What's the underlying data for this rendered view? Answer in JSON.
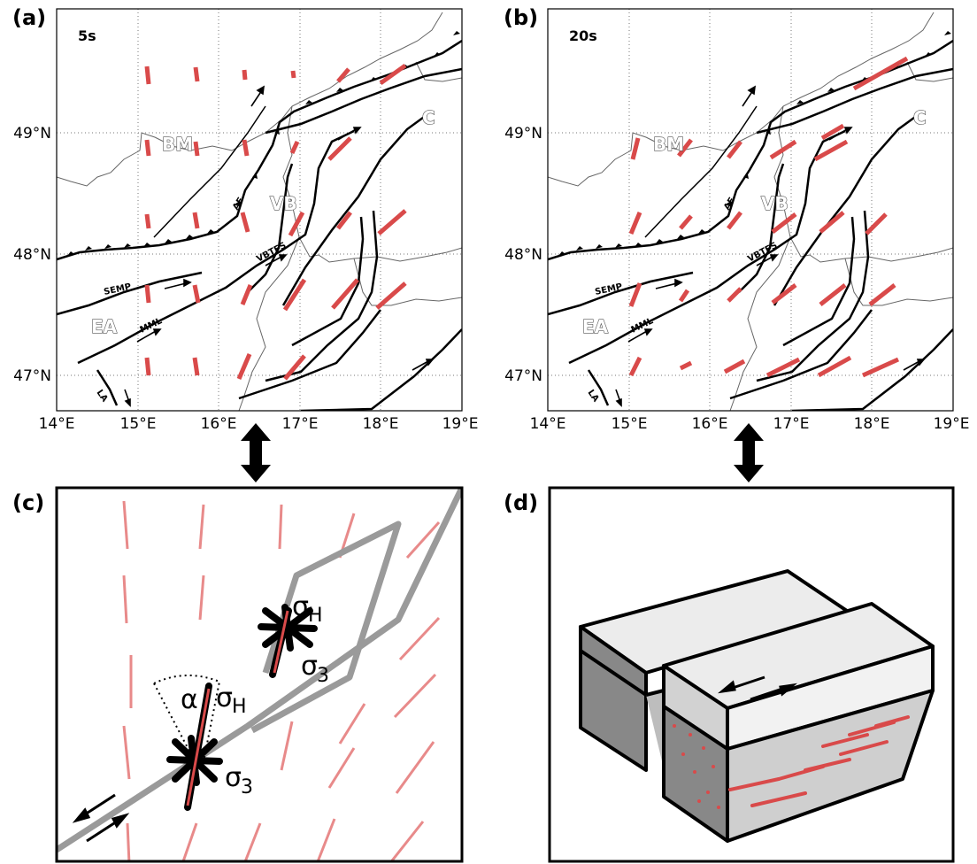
{
  "panels": {
    "a": {
      "label": "(a)",
      "period": "5s"
    },
    "b": {
      "label": "(b)",
      "period": "20s"
    },
    "c": {
      "label": "(c)"
    },
    "d": {
      "label": "(d)"
    }
  },
  "axes": {
    "lon_ticks": [
      "14°E",
      "15°E",
      "16°E",
      "17°E",
      "18°E",
      "19°E"
    ],
    "lat_ticks": [
      "49°N",
      "48°N",
      "47°N"
    ]
  },
  "regions": {
    "bm": "BM",
    "vb": "VB",
    "c": "C",
    "ea": "EA"
  },
  "faults": {
    "af": "AF",
    "vbtfs": "VBTFS",
    "semp": "SEMP",
    "mml": "MML",
    "la": "LA"
  },
  "symbols": {
    "sigma_h": "σ",
    "sigma_h_sub": "H",
    "sigma_3": "σ",
    "sigma_3_sub": "3",
    "alpha": "α"
  },
  "colors": {
    "stress": "#d94a4a",
    "stress_light": "#e88a8a",
    "fault_grey": "#9a9a9a"
  }
}
